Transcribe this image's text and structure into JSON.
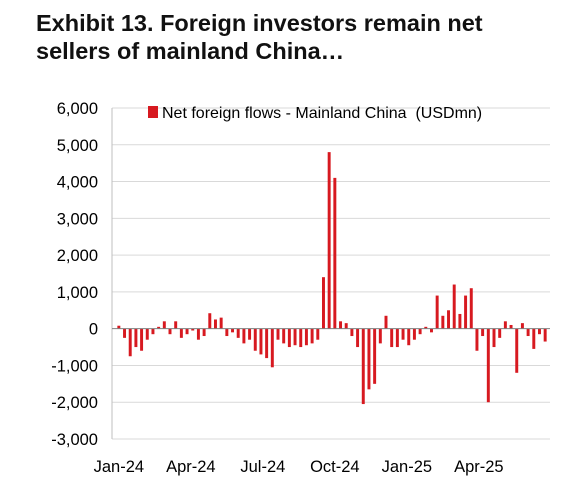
{
  "title_line1": "Exhibit 13.  Foreign investors remain net",
  "title_line2": "sellers of mainland China…",
  "chart_data": {
    "type": "bar",
    "title": "Exhibit 13.  Foreign investors remain net sellers of mainland China…",
    "xlabel": "",
    "ylabel": "",
    "ylim": [
      -3000,
      6000
    ],
    "yticks": [
      6000,
      5000,
      4000,
      3000,
      2000,
      1000,
      0,
      -1000,
      -2000,
      -3000
    ],
    "ytick_labels": [
      "6,000",
      "5,000",
      "4,000",
      "3,000",
      "2,000",
      "1,000",
      "0",
      "-1,000",
      "-2,000",
      "-3,000"
    ],
    "xtick_labels": [
      "Jan-24",
      "Apr-24",
      "Jul-24",
      "Oct-24",
      "Jan-25",
      "Apr-25"
    ],
    "grid": true,
    "legend_position": "top-right",
    "series": [
      {
        "name": "Net foreign flows - Mainland China  (USDmn)",
        "color": "#d71920",
        "values": [
          80,
          -250,
          -750,
          -500,
          -600,
          -300,
          -150,
          50,
          200,
          -150,
          200,
          -250,
          -150,
          -50,
          -300,
          -200,
          420,
          250,
          300,
          -200,
          -100,
          -250,
          -400,
          -300,
          -600,
          -700,
          -800,
          -1050,
          -300,
          -400,
          -500,
          -450,
          -500,
          -450,
          -400,
          -300,
          1400,
          4800,
          4100,
          200,
          150,
          -200,
          -500,
          -2050,
          -1650,
          -1500,
          -400,
          350,
          -500,
          -500,
          -300,
          -450,
          -300,
          -150,
          50,
          -100,
          900,
          350,
          500,
          1200,
          400,
          900,
          1100,
          -600,
          -200,
          -2000,
          -500,
          -250,
          200,
          100,
          -1200,
          150,
          -200,
          -550,
          -150,
          -350
        ]
      }
    ]
  }
}
